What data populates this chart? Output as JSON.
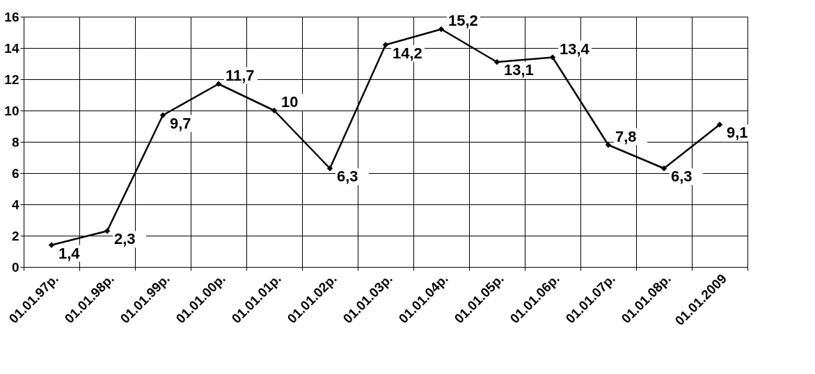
{
  "chart_data": {
    "type": "line",
    "categories": [
      "01.01.97р.",
      "01.01.98р.",
      "01.01.99р.",
      "01.01.00р.",
      "01.01.01р.",
      "01.01.02р.",
      "01.01.03р.",
      "01.01.04р.",
      "01.01.05р.",
      "01.01.06р.",
      "01.01.07р.",
      "01.01.08р.",
      "01.01.2009"
    ],
    "values": [
      1.4,
      2.3,
      9.7,
      11.7,
      10,
      6.3,
      14.2,
      15.2,
      13.1,
      13.4,
      7.8,
      6.3,
      9.1
    ],
    "value_labels": [
      "1,4",
      "2,3",
      "9,7",
      "11,7",
      "10",
      "6,3",
      "14,2",
      "15,2",
      "13,1",
      "13,4",
      "7,8",
      "6,3",
      "9,1"
    ],
    "color": "#000000",
    "ylim": [
      0,
      16
    ],
    "yticks": [
      0,
      2,
      4,
      6,
      8,
      10,
      12,
      14,
      16
    ],
    "grid": true,
    "marker": "diamond",
    "line_style": "solid"
  }
}
